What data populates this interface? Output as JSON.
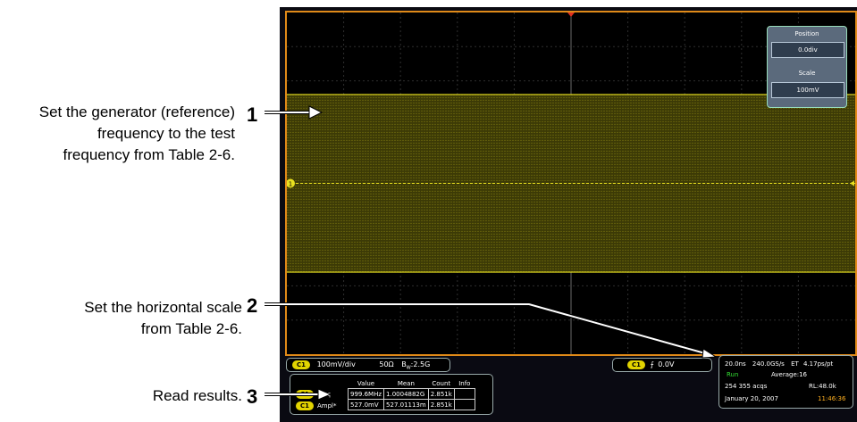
{
  "callouts": [
    {
      "number": "1",
      "lines": [
        "Set the generator (reference)",
        "frequency to the test",
        "frequency from Table 2-6."
      ]
    },
    {
      "number": "2",
      "lines": [
        "Set the horizontal scale",
        "from Table 2-6."
      ]
    },
    {
      "number": "3",
      "lines": [
        "Read results."
      ]
    }
  ],
  "control_panel": {
    "position_label": "Position",
    "position_value": "0.0div",
    "scale_label": "Scale",
    "scale_value": "100mV"
  },
  "channel_readout": {
    "badge": "C1",
    "vdiv": "100mV/div",
    "impedance": "50Ω",
    "bandwidth": "B",
    "bandwidth_sub": "W",
    "bandwidth_value": ":2.5G"
  },
  "trigger_readout": {
    "badge": "C1",
    "slope_symbol": "⨍",
    "level": "0.0V"
  },
  "measurements": {
    "headers": [
      "Value",
      "Mean",
      "Count",
      "Info"
    ],
    "rows": [
      {
        "badge": "C1",
        "label": "Freq",
        "value": "999.6MHz",
        "mean": "1.0004882G",
        "count": "2.851k"
      },
      {
        "badge": "C1",
        "label": "Ampl*",
        "value": "527.0mV",
        "mean": "527.01113m",
        "count": "2.851k"
      }
    ]
  },
  "acquisition": {
    "timebase": "20.0ns",
    "sample_rate": "240.0GS/s",
    "mode": "ET",
    "resolution": "4.17ps/pt",
    "state": "Run",
    "average": "Average:16",
    "acqs": "254 355 acqs",
    "record_length": "RL:48.0k",
    "date": "January 20, 2007",
    "time": "11:46:36"
  },
  "waveform": {
    "channel_marker": "1",
    "color": "#e8e020",
    "top_division_fraction": 0.24,
    "bottom_division_fraction": 0.76
  },
  "colors": {
    "frame": "#e08a18",
    "trace": "#e8e020",
    "run_state": "#33dd33",
    "clock": "#ffb020"
  }
}
